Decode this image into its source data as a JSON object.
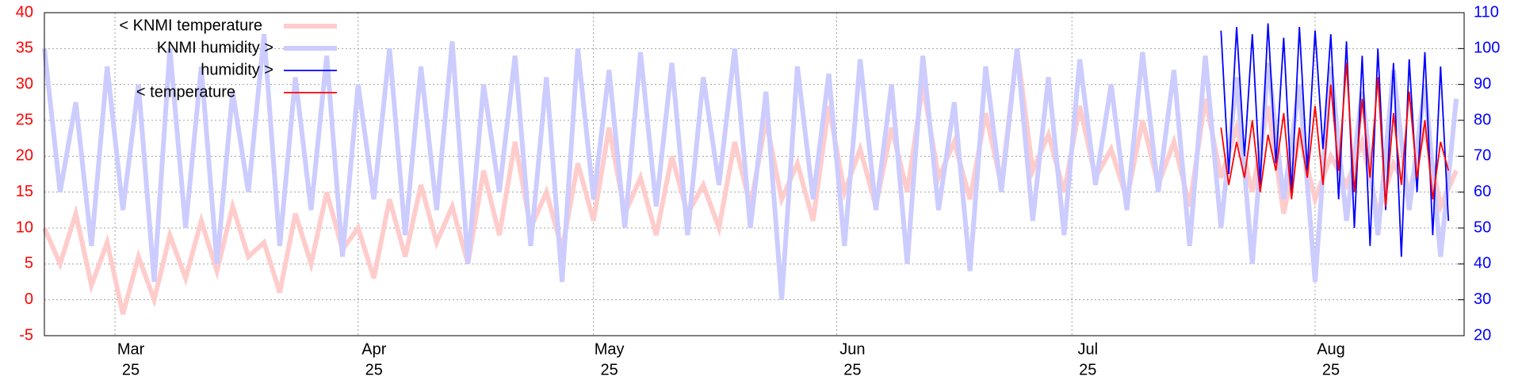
{
  "chart_data": {
    "type": "line",
    "xlim": [
      "03-16",
      "09-13"
    ],
    "xticks": [
      {
        "value": "03-25",
        "label": [
          "Mar",
          "25"
        ]
      },
      {
        "value": "04-25",
        "label": [
          "Apr",
          "25"
        ]
      },
      {
        "value": "05-25",
        "label": [
          "May",
          "25"
        ]
      },
      {
        "value": "06-25",
        "label": [
          "Jun",
          "25"
        ]
      },
      {
        "value": "07-25",
        "label": [
          "Jul",
          "25"
        ]
      },
      {
        "value": "08-25",
        "label": [
          "Aug",
          "25"
        ]
      }
    ],
    "ylim": [
      -5,
      40
    ],
    "yticks": [
      -5,
      0,
      5,
      10,
      15,
      20,
      25,
      30,
      35,
      40
    ],
    "ytick_color": "#ff0000",
    "y2lim": [
      20,
      110
    ],
    "y2ticks": [
      20,
      30,
      40,
      50,
      60,
      70,
      80,
      90,
      100,
      110
    ],
    "y2tick_color": "#0000ff",
    "grid": true,
    "legend": "upper left",
    "series": [
      {
        "name": "< KNMI temperature",
        "color": "#ffcccc",
        "width": 6,
        "axis": "y",
        "x": [
          "03-16",
          "03-18",
          "03-20",
          "03-22",
          "03-24",
          "03-26",
          "03-28",
          "03-30",
          "04-01",
          "04-03",
          "04-05",
          "04-07",
          "04-09",
          "04-11",
          "04-13",
          "04-15",
          "04-17",
          "04-19",
          "04-21",
          "04-23",
          "04-25",
          "04-27",
          "04-29",
          "05-01",
          "05-03",
          "05-05",
          "05-07",
          "05-09",
          "05-11",
          "05-13",
          "05-15",
          "05-17",
          "05-19",
          "05-21",
          "05-23",
          "05-25",
          "05-27",
          "05-29",
          "05-31",
          "06-02",
          "06-04",
          "06-06",
          "06-08",
          "06-10",
          "06-12",
          "06-14",
          "06-16",
          "06-18",
          "06-20",
          "06-22",
          "06-24",
          "06-26",
          "06-28",
          "06-30",
          "07-02",
          "07-04",
          "07-06",
          "07-08",
          "07-10",
          "07-12",
          "07-14",
          "07-16",
          "07-18",
          "07-20",
          "07-22",
          "07-24",
          "07-26",
          "07-28",
          "07-30",
          "08-01",
          "08-03",
          "08-05",
          "08-07",
          "08-09",
          "08-11",
          "08-13",
          "08-15",
          "08-17",
          "08-19",
          "08-21",
          "08-23",
          "08-25",
          "08-27",
          "08-29",
          "08-31",
          "09-02",
          "09-04",
          "09-06",
          "09-08",
          "09-10",
          "09-12"
        ],
        "values": [
          10,
          5,
          12,
          2,
          8,
          -2,
          6,
          0,
          9,
          3,
          11,
          4,
          13,
          6,
          8,
          1,
          12,
          5,
          15,
          7,
          10,
          3,
          14,
          6,
          16,
          8,
          13,
          5,
          18,
          9,
          22,
          10,
          15,
          7,
          19,
          11,
          24,
          12,
          17,
          9,
          20,
          12,
          16,
          10,
          22,
          13,
          25,
          14,
          19,
          11,
          27,
          15,
          21,
          13,
          24,
          15,
          30,
          17,
          22,
          14,
          26,
          16,
          35,
          18,
          23,
          15,
          27,
          17,
          21,
          14,
          25,
          16,
          22,
          13,
          28,
          17,
          24,
          15,
          27,
          12,
          23,
          14,
          20,
          16,
          22,
          12,
          19,
          15,
          24,
          13,
          18
        ]
      },
      {
        "name": "KNMI humidity >",
        "color": "#ccccff",
        "width": 6,
        "axis": "y2",
        "x": [
          "03-16",
          "03-18",
          "03-20",
          "03-22",
          "03-24",
          "03-26",
          "03-28",
          "03-30",
          "04-01",
          "04-03",
          "04-05",
          "04-07",
          "04-09",
          "04-11",
          "04-13",
          "04-15",
          "04-17",
          "04-19",
          "04-21",
          "04-23",
          "04-25",
          "04-27",
          "04-29",
          "05-01",
          "05-03",
          "05-05",
          "05-07",
          "05-09",
          "05-11",
          "05-13",
          "05-15",
          "05-17",
          "05-19",
          "05-21",
          "05-23",
          "05-25",
          "05-27",
          "05-29",
          "05-31",
          "06-02",
          "06-04",
          "06-06",
          "06-08",
          "06-10",
          "06-12",
          "06-14",
          "06-16",
          "06-18",
          "06-20",
          "06-22",
          "06-24",
          "06-26",
          "06-28",
          "06-30",
          "07-02",
          "07-04",
          "07-06",
          "07-08",
          "07-10",
          "07-12",
          "07-14",
          "07-16",
          "07-18",
          "07-20",
          "07-22",
          "07-24",
          "07-26",
          "07-28",
          "07-30",
          "08-01",
          "08-03",
          "08-05",
          "08-07",
          "08-09",
          "08-11",
          "08-13",
          "08-15",
          "08-17",
          "08-19",
          "08-21",
          "08-23",
          "08-25",
          "08-27",
          "08-29",
          "08-31",
          "09-02",
          "09-04",
          "09-06",
          "09-08",
          "09-10",
          "09-12"
        ],
        "values": [
          100,
          60,
          85,
          45,
          95,
          55,
          90,
          35,
          100,
          50,
          95,
          40,
          88,
          60,
          104,
          45,
          92,
          55,
          98,
          42,
          90,
          58,
          100,
          48,
          95,
          55,
          102,
          40,
          90,
          60,
          98,
          45,
          92,
          35,
          100,
          58,
          94,
          50,
          99,
          56,
          96,
          48,
          92,
          62,
          100,
          50,
          88,
          30,
          95,
          58,
          93,
          45,
          97,
          55,
          90,
          40,
          98,
          55,
          85,
          38,
          95,
          60,
          100,
          52,
          92,
          48,
          97,
          62,
          90,
          55,
          99,
          60,
          94,
          45,
          98,
          50,
          92,
          40,
          96,
          58,
          90,
          35,
          95,
          52,
          88,
          48,
          94,
          55,
          90,
          42,
          86
        ]
      },
      {
        "name": "humidity >",
        "color": "#0000ff",
        "width": 1.8,
        "axis": "y2",
        "x": [
          "08-13",
          "08-14",
          "08-15",
          "08-16",
          "08-17",
          "08-18",
          "08-19",
          "08-20",
          "08-21",
          "08-22",
          "08-23",
          "08-24",
          "08-25",
          "08-26",
          "08-27",
          "08-28",
          "08-29",
          "08-30",
          "08-31",
          "09-01",
          "09-02",
          "09-03",
          "09-04",
          "09-05",
          "09-06",
          "09-07",
          "09-08",
          "09-09",
          "09-10",
          "09-11"
        ],
        "values": [
          105,
          65,
          106,
          70,
          104,
          62,
          107,
          68,
          103,
          60,
          106,
          66,
          105,
          72,
          104,
          58,
          102,
          50,
          98,
          45,
          100,
          55,
          96,
          42,
          97,
          60,
          99,
          48,
          95,
          52
        ]
      },
      {
        "name": "< temperature",
        "color": "#ff0000",
        "width": 1.8,
        "axis": "y",
        "x": [
          "08-13",
          "08-14",
          "08-15",
          "08-16",
          "08-17",
          "08-18",
          "08-19",
          "08-20",
          "08-21",
          "08-22",
          "08-23",
          "08-24",
          "08-25",
          "08-26",
          "08-27",
          "08-28",
          "08-29",
          "08-30",
          "08-31",
          "09-01",
          "09-02",
          "09-03",
          "09-04",
          "09-05",
          "09-06",
          "09-07",
          "09-08",
          "09-09",
          "09-10",
          "09-11"
        ],
        "values": [
          24,
          16,
          22,
          17,
          25,
          15,
          23,
          18,
          26,
          14,
          24,
          17,
          27,
          16,
          30,
          18,
          33,
          15,
          28,
          17,
          31,
          13,
          26,
          16,
          29,
          17,
          25,
          14,
          22,
          18
        ]
      }
    ]
  }
}
